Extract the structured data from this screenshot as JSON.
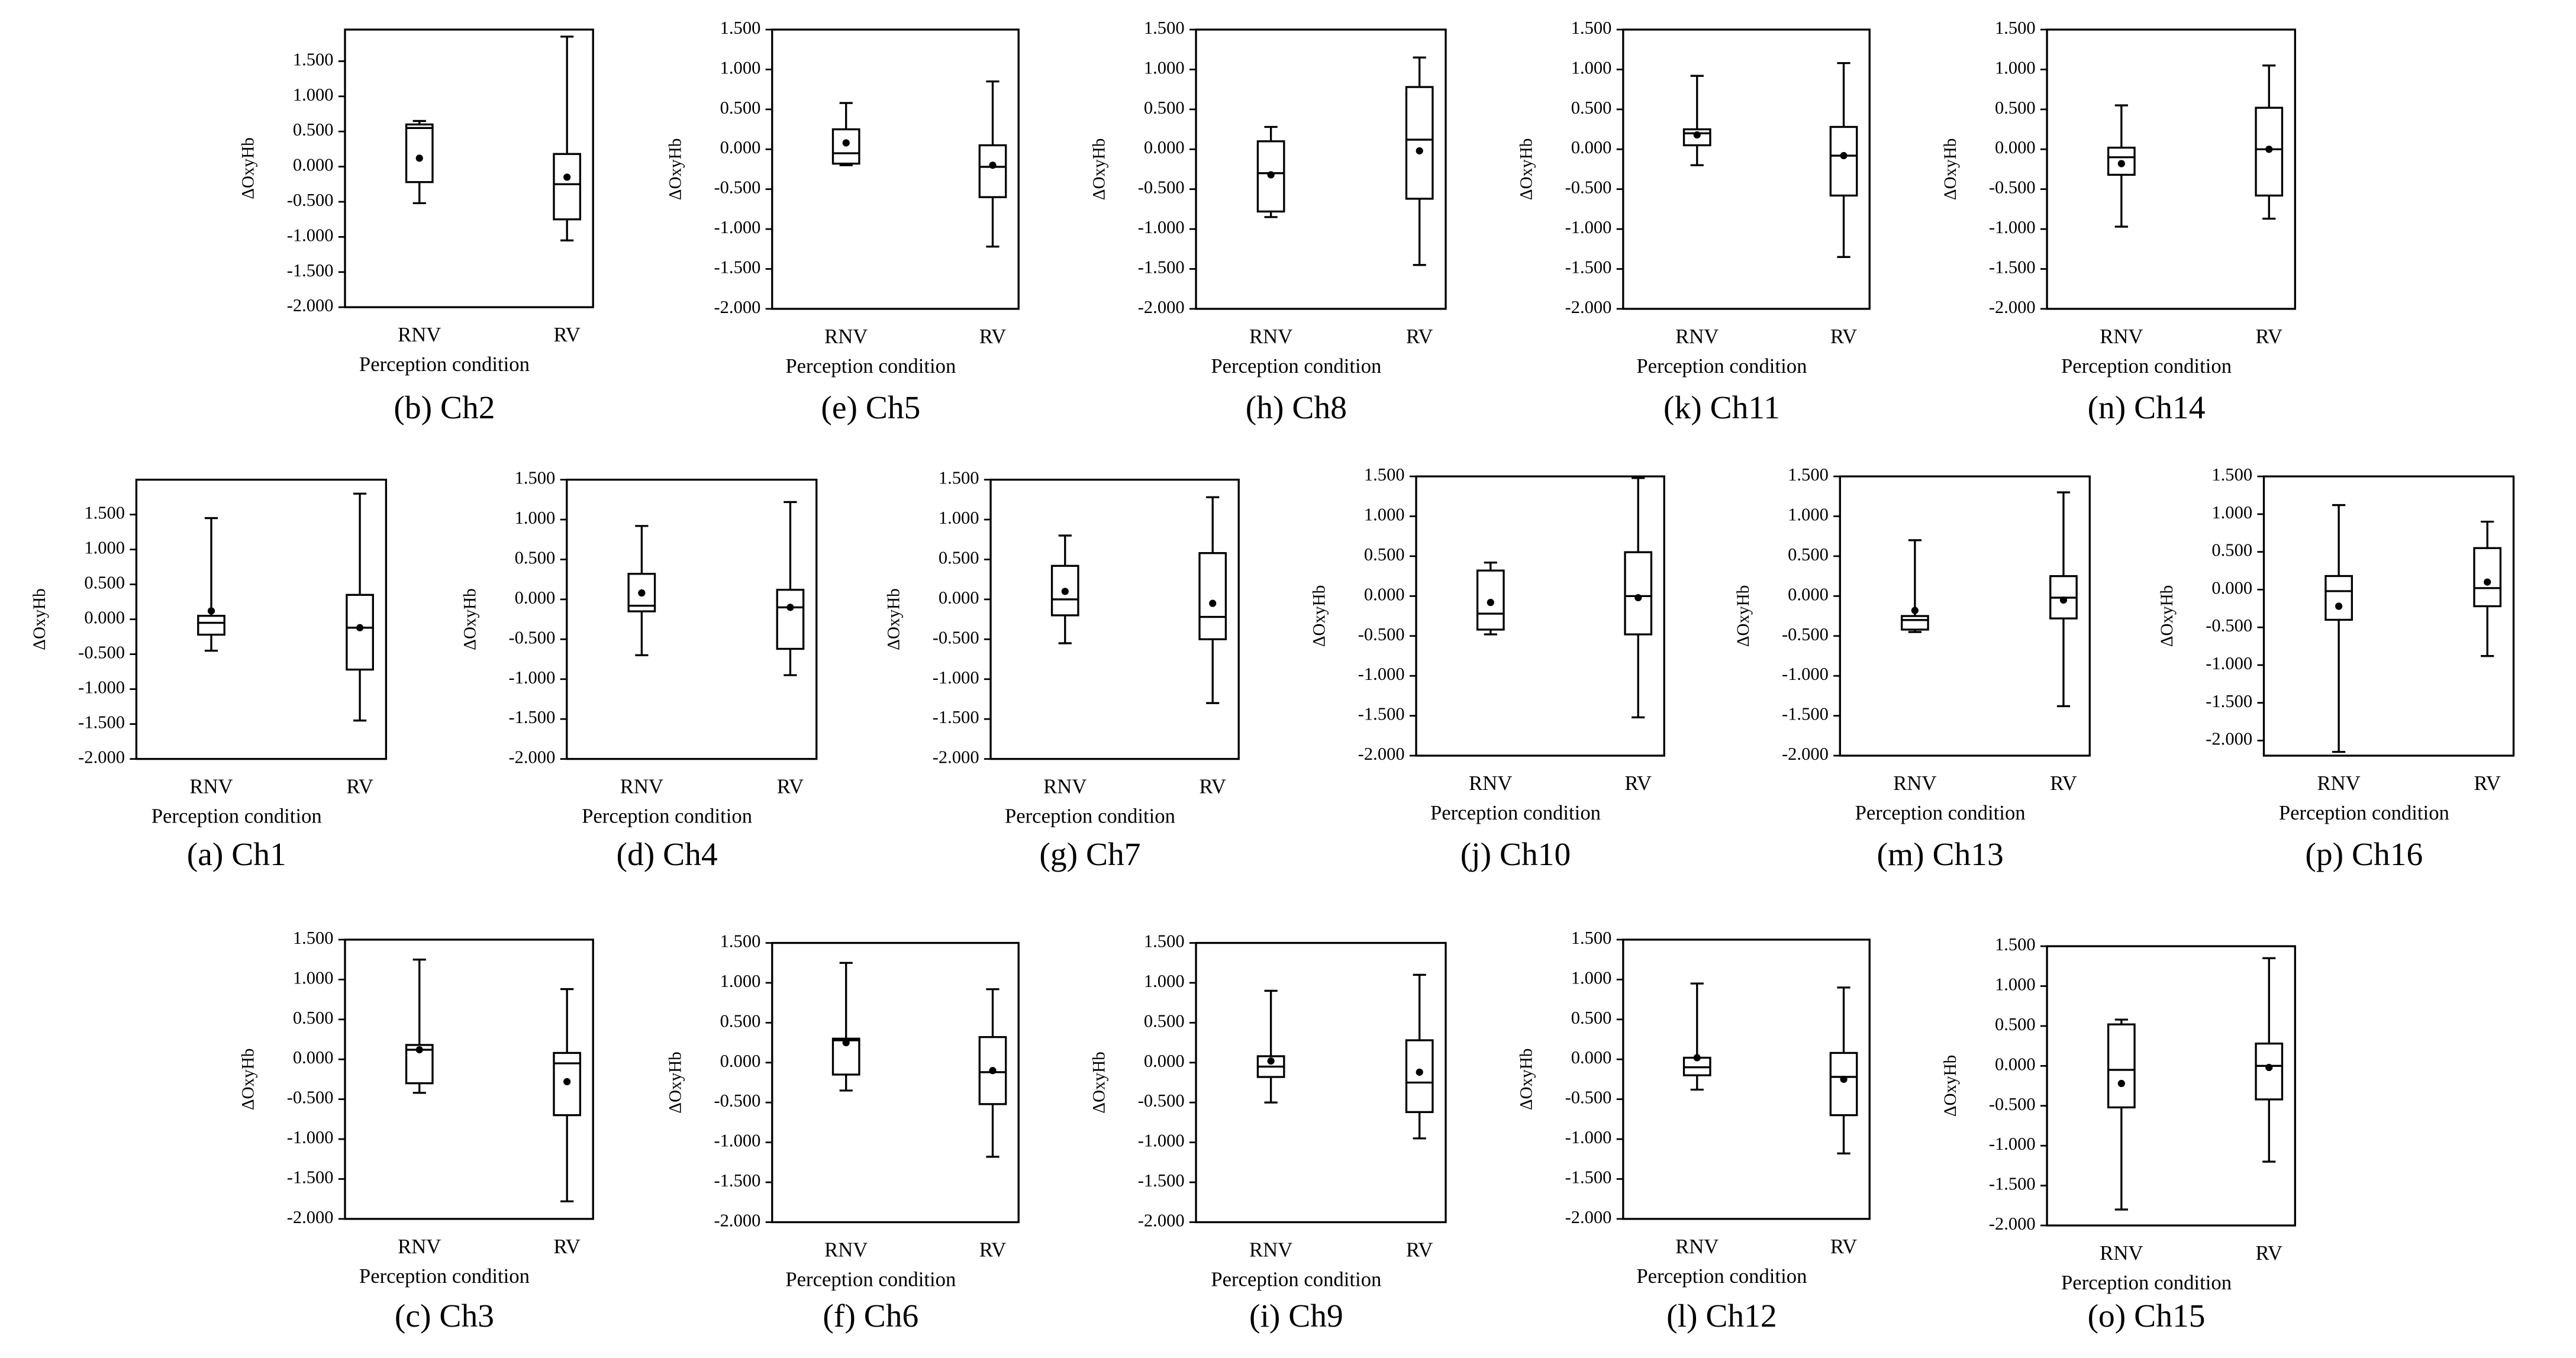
{
  "chart_data": [
    {
      "type": "box",
      "title": "(b) Ch2",
      "ylabel": "ΔOxyHb",
      "xlabel": "Perception condition",
      "categories": [
        "RNV",
        "RV"
      ],
      "ylim": [
        -2,
        1.95
      ],
      "yticks": [
        {
          "value": 1.5,
          "label": "1.500"
        },
        {
          "value": 1,
          "label": "1.000"
        },
        {
          "value": 0.5,
          "label": "0.500"
        },
        {
          "value": 0,
          "label": "0.000"
        },
        {
          "value": -0.5,
          "label": "-0.500"
        },
        {
          "value": -1,
          "label": "-1.000"
        },
        {
          "value": -1.5,
          "label": "-1.500"
        },
        {
          "value": -2,
          "label": "-2.000"
        }
      ],
      "min": [
        -0.52,
        -1.05
      ],
      "q1": [
        -0.22,
        -0.75
      ],
      "median": [
        0.55,
        -0.25
      ],
      "q3": [
        0.6,
        0.18
      ],
      "max": [
        0.65,
        1.85
      ],
      "mean": [
        0.12,
        -0.15
      ]
    },
    {
      "type": "box",
      "title": "(e) Ch5",
      "ylabel": "ΔOxyHb",
      "xlabel": "Perception condition",
      "categories": [
        "RNV",
        "RV"
      ],
      "ylim": [
        -2,
        1.5
      ],
      "yticks": [
        {
          "value": 1.5,
          "label": "1.500"
        },
        {
          "value": 1,
          "label": "1.000"
        },
        {
          "value": 0.5,
          "label": "0.500"
        },
        {
          "value": 0,
          "label": "0.000"
        },
        {
          "value": -0.5,
          "label": "-0.500"
        },
        {
          "value": -1,
          "label": "-1.000"
        },
        {
          "value": -1.5,
          "label": "-1.500"
        },
        {
          "value": -2,
          "label": "-2.000"
        }
      ],
      "min": [
        -0.2,
        -1.22
      ],
      "q1": [
        -0.18,
        -0.6
      ],
      "median": [
        -0.05,
        -0.22
      ],
      "q3": [
        0.25,
        0.05
      ],
      "max": [
        0.58,
        0.85
      ],
      "mean": [
        0.08,
        -0.2
      ]
    },
    {
      "type": "box",
      "title": "(h) Ch8",
      "ylabel": "ΔOxyHb",
      "xlabel": "Perception condition",
      "categories": [
        "RNV",
        "RV"
      ],
      "ylim": [
        -2,
        1.5
      ],
      "yticks": [
        {
          "value": 1.5,
          "label": "1.500"
        },
        {
          "value": 1,
          "label": "1.000"
        },
        {
          "value": 0.5,
          "label": "0.500"
        },
        {
          "value": 0,
          "label": "0.000"
        },
        {
          "value": -0.5,
          "label": "-0.500"
        },
        {
          "value": -1,
          "label": "-1.000"
        },
        {
          "value": -1.5,
          "label": "-1.500"
        },
        {
          "value": -2,
          "label": "-2.000"
        }
      ],
      "min": [
        -0.85,
        -1.45
      ],
      "q1": [
        -0.78,
        -0.62
      ],
      "median": [
        -0.3,
        0.12
      ],
      "q3": [
        0.1,
        0.78
      ],
      "max": [
        0.28,
        1.15
      ],
      "mean": [
        -0.32,
        -0.02
      ]
    },
    {
      "type": "box",
      "title": "(k) Ch11",
      "ylabel": "ΔOxyHb",
      "xlabel": "Perception condition",
      "categories": [
        "RNV",
        "RV"
      ],
      "ylim": [
        -2,
        1.5
      ],
      "yticks": [
        {
          "value": 1.5,
          "label": "1.500"
        },
        {
          "value": 1,
          "label": "1.000"
        },
        {
          "value": 0.5,
          "label": "0.500"
        },
        {
          "value": 0,
          "label": "0.000"
        },
        {
          "value": -0.5,
          "label": "-0.500"
        },
        {
          "value": -1,
          "label": "-1.000"
        },
        {
          "value": -1.5,
          "label": "-1.500"
        },
        {
          "value": -2,
          "label": "-2.000"
        }
      ],
      "min": [
        -0.2,
        -1.35
      ],
      "q1": [
        0.05,
        -0.58
      ],
      "median": [
        0.2,
        -0.08
      ],
      "q3": [
        0.25,
        0.28
      ],
      "max": [
        0.92,
        1.08
      ],
      "mean": [
        0.18,
        -0.08
      ]
    },
    {
      "type": "box",
      "title": "(n) Ch14",
      "ylabel": "ΔOxyHb",
      "xlabel": "Perception condition",
      "categories": [
        "RNV",
        "RV"
      ],
      "ylim": [
        -2,
        1.5
      ],
      "yticks": [
        {
          "value": 1.5,
          "label": "1.500"
        },
        {
          "value": 1,
          "label": "1.000"
        },
        {
          "value": 0.5,
          "label": "0.500"
        },
        {
          "value": 0,
          "label": "0.000"
        },
        {
          "value": -0.5,
          "label": "-0.500"
        },
        {
          "value": -1,
          "label": "-1.000"
        },
        {
          "value": -1.5,
          "label": "-1.500"
        },
        {
          "value": -2,
          "label": "-2.000"
        }
      ],
      "min": [
        -0.97,
        -0.87
      ],
      "q1": [
        -0.32,
        -0.58
      ],
      "median": [
        -0.1,
        0.0
      ],
      "q3": [
        0.02,
        0.52
      ],
      "max": [
        0.55,
        1.05
      ],
      "mean": [
        -0.18,
        0.0
      ]
    },
    {
      "type": "box",
      "title": "(a) Ch1",
      "ylabel": "ΔOxyHb",
      "xlabel": "Perception condition",
      "categories": [
        "RNV",
        "RV"
      ],
      "ylim": [
        -2,
        2.0
      ],
      "yticks": [
        {
          "value": 1.5,
          "label": "1.500"
        },
        {
          "value": 1,
          "label": "1.000"
        },
        {
          "value": 0.5,
          "label": "0.500"
        },
        {
          "value": 0,
          "label": "0.000"
        },
        {
          "value": -0.5,
          "label": "-0.500"
        },
        {
          "value": -1,
          "label": "-1.000"
        },
        {
          "value": -1.5,
          "label": "-1.500"
        },
        {
          "value": -2,
          "label": "-2.000"
        }
      ],
      "min": [
        -0.45,
        -1.45
      ],
      "q1": [
        -0.22,
        -0.72
      ],
      "median": [
        -0.05,
        -0.12
      ],
      "q3": [
        0.05,
        0.35
      ],
      "max": [
        1.45,
        1.8
      ],
      "mean": [
        0.12,
        -0.12
      ]
    },
    {
      "type": "box",
      "title": "(d) Ch4",
      "ylabel": "ΔOxyHb",
      "xlabel": "Perception condition",
      "categories": [
        "RNV",
        "RV"
      ],
      "ylim": [
        -2,
        1.5
      ],
      "yticks": [
        {
          "value": 1.5,
          "label": "1.500"
        },
        {
          "value": 1,
          "label": "1.000"
        },
        {
          "value": 0.5,
          "label": "0.500"
        },
        {
          "value": 0,
          "label": "0.000"
        },
        {
          "value": -0.5,
          "label": "-0.500"
        },
        {
          "value": -1,
          "label": "-1.000"
        },
        {
          "value": -1.5,
          "label": "-1.500"
        },
        {
          "value": -2,
          "label": "-2.000"
        }
      ],
      "min": [
        -0.7,
        -0.95
      ],
      "q1": [
        -0.15,
        -0.62
      ],
      "median": [
        -0.08,
        -0.1
      ],
      "q3": [
        0.32,
        0.12
      ],
      "max": [
        0.92,
        1.22
      ],
      "mean": [
        0.08,
        -0.1
      ]
    },
    {
      "type": "box",
      "title": "(g) Ch7",
      "ylabel": "ΔOxyHb",
      "xlabel": "Perception condition",
      "categories": [
        "RNV",
        "RV"
      ],
      "ylim": [
        -2,
        1.5
      ],
      "yticks": [
        {
          "value": 1.5,
          "label": "1.500"
        },
        {
          "value": 1,
          "label": "1.000"
        },
        {
          "value": 0.5,
          "label": "0.500"
        },
        {
          "value": 0,
          "label": "0.000"
        },
        {
          "value": -0.5,
          "label": "-0.500"
        },
        {
          "value": -1,
          "label": "-1.000"
        },
        {
          "value": -1.5,
          "label": "-1.500"
        },
        {
          "value": -2,
          "label": "-2.000"
        }
      ],
      "min": [
        -0.55,
        -1.3
      ],
      "q1": [
        -0.2,
        -0.5
      ],
      "median": [
        0.0,
        -0.22
      ],
      "q3": [
        0.42,
        0.58
      ],
      "max": [
        0.8,
        1.28
      ],
      "mean": [
        0.1,
        -0.05
      ]
    },
    {
      "type": "box",
      "title": "(j) Ch10",
      "ylabel": "ΔOxyHb",
      "xlabel": "Perception condition",
      "categories": [
        "RNV",
        "RV"
      ],
      "ylim": [
        -2,
        1.5
      ],
      "yticks": [
        {
          "value": 1.5,
          "label": "1.500"
        },
        {
          "value": 1,
          "label": "1.000"
        },
        {
          "value": 0.5,
          "label": "0.500"
        },
        {
          "value": 0,
          "label": "0.000"
        },
        {
          "value": -0.5,
          "label": "-0.500"
        },
        {
          "value": -1,
          "label": "-1.000"
        },
        {
          "value": -1.5,
          "label": "-1.500"
        },
        {
          "value": -2,
          "label": "-2.000"
        }
      ],
      "min": [
        -0.48,
        -1.52
      ],
      "q1": [
        -0.42,
        -0.48
      ],
      "median": [
        -0.22,
        0.0
      ],
      "q3": [
        0.32,
        0.55
      ],
      "max": [
        0.42,
        1.48
      ],
      "mean": [
        -0.08,
        -0.02
      ]
    },
    {
      "type": "box",
      "title": "(m) Ch13",
      "ylabel": "ΔOxyHb",
      "xlabel": "Perception condition",
      "categories": [
        "RNV",
        "RV"
      ],
      "ylim": [
        -2,
        1.5
      ],
      "yticks": [
        {
          "value": 1.5,
          "label": "1.500"
        },
        {
          "value": 1,
          "label": "1.000"
        },
        {
          "value": 0.5,
          "label": "0.500"
        },
        {
          "value": 0,
          "label": "0.000"
        },
        {
          "value": -0.5,
          "label": "-0.500"
        },
        {
          "value": -1,
          "label": "-1.000"
        },
        {
          "value": -1.5,
          "label": "-1.500"
        },
        {
          "value": -2,
          "label": "-2.000"
        }
      ],
      "min": [
        -0.45,
        -1.38
      ],
      "q1": [
        -0.42,
        -0.28
      ],
      "median": [
        -0.3,
        -0.02
      ],
      "q3": [
        -0.25,
        0.25
      ],
      "max": [
        0.7,
        1.3
      ],
      "mean": [
        -0.18,
        -0.05
      ]
    },
    {
      "type": "box",
      "title": "(p) Ch16",
      "ylabel": "ΔOxyHb",
      "xlabel": "Perception condition",
      "categories": [
        "RNV",
        "RV"
      ],
      "ylim": [
        -2.2,
        1.5
      ],
      "yticks": [
        {
          "value": 1.5,
          "label": "1.500"
        },
        {
          "value": 1,
          "label": "1.000"
        },
        {
          "value": 0.5,
          "label": "0.500"
        },
        {
          "value": 0,
          "label": "0.000"
        },
        {
          "value": -0.5,
          "label": "-0.500"
        },
        {
          "value": -1,
          "label": "-1.000"
        },
        {
          "value": -1.5,
          "label": "-1.500"
        },
        {
          "value": -2,
          "label": "-2.000"
        }
      ],
      "min": [
        -2.15,
        -0.88
      ],
      "q1": [
        -0.4,
        -0.22
      ],
      "median": [
        -0.02,
        0.02
      ],
      "q3": [
        0.18,
        0.55
      ],
      "max": [
        1.12,
        0.9
      ],
      "mean": [
        -0.22,
        0.1
      ]
    },
    {
      "type": "box",
      "title": "(c) Ch3",
      "ylabel": "ΔOxyHb",
      "xlabel": "Perception condition",
      "categories": [
        "RNV",
        "RV"
      ],
      "ylim": [
        -2,
        1.5
      ],
      "yticks": [
        {
          "value": 1.5,
          "label": "1.500"
        },
        {
          "value": 1,
          "label": "1.000"
        },
        {
          "value": 0.5,
          "label": "0.500"
        },
        {
          "value": 0,
          "label": "0.000"
        },
        {
          "value": -0.5,
          "label": "-0.500"
        },
        {
          "value": -1,
          "label": "-1.000"
        },
        {
          "value": -1.5,
          "label": "-1.500"
        },
        {
          "value": -2,
          "label": "-2.000"
        }
      ],
      "min": [
        -0.42,
        -1.78
      ],
      "q1": [
        -0.3,
        -0.7
      ],
      "median": [
        0.12,
        -0.05
      ],
      "q3": [
        0.18,
        0.08
      ],
      "max": [
        1.25,
        0.88
      ],
      "mean": [
        0.12,
        -0.28
      ]
    },
    {
      "type": "box",
      "title": "(f) Ch6",
      "ylabel": "ΔOxyHb",
      "xlabel": "Perception condition",
      "categories": [
        "RNV",
        "RV"
      ],
      "ylim": [
        -2,
        1.5
      ],
      "yticks": [
        {
          "value": 1.5,
          "label": "1.500"
        },
        {
          "value": 1,
          "label": "1.000"
        },
        {
          "value": 0.5,
          "label": "0.500"
        },
        {
          "value": 0,
          "label": "0.000"
        },
        {
          "value": -0.5,
          "label": "-0.500"
        },
        {
          "value": -1,
          "label": "-1.000"
        },
        {
          "value": -1.5,
          "label": "-1.500"
        },
        {
          "value": -2,
          "label": "-2.000"
        }
      ],
      "min": [
        -0.35,
        -1.18
      ],
      "q1": [
        -0.15,
        -0.52
      ],
      "median": [
        0.28,
        -0.12
      ],
      "q3": [
        0.3,
        0.32
      ],
      "max": [
        1.25,
        0.92
      ],
      "mean": [
        0.25,
        -0.1
      ]
    },
    {
      "type": "box",
      "title": "(i) Ch9",
      "ylabel": "ΔOxyHb",
      "xlabel": "Perception condition",
      "categories": [
        "RNV",
        "RV"
      ],
      "ylim": [
        -2,
        1.5
      ],
      "yticks": [
        {
          "value": 1.5,
          "label": "1.500"
        },
        {
          "value": 1,
          "label": "1.000"
        },
        {
          "value": 0.5,
          "label": "0.500"
        },
        {
          "value": 0,
          "label": "0.000"
        },
        {
          "value": -0.5,
          "label": "-0.500"
        },
        {
          "value": -1,
          "label": "-1.000"
        },
        {
          "value": -1.5,
          "label": "-1.500"
        },
        {
          "value": -2,
          "label": "-2.000"
        }
      ],
      "min": [
        -0.5,
        -0.95
      ],
      "q1": [
        -0.18,
        -0.62
      ],
      "median": [
        -0.05,
        -0.25
      ],
      "q3": [
        0.08,
        0.28
      ],
      "max": [
        0.9,
        1.1
      ],
      "mean": [
        0.02,
        -0.12
      ]
    },
    {
      "type": "box",
      "title": "(l) Ch12",
      "ylabel": "ΔOxyHb",
      "xlabel": "Perception condition",
      "categories": [
        "RNV",
        "RV"
      ],
      "ylim": [
        -2,
        1.5
      ],
      "yticks": [
        {
          "value": 1.5,
          "label": "1.500"
        },
        {
          "value": 1,
          "label": "1.000"
        },
        {
          "value": 0.5,
          "label": "0.500"
        },
        {
          "value": 0,
          "label": "0.000"
        },
        {
          "value": -0.5,
          "label": "-0.500"
        },
        {
          "value": -1,
          "label": "-1.000"
        },
        {
          "value": -1.5,
          "label": "-1.500"
        },
        {
          "value": -2,
          "label": "-2.000"
        }
      ],
      "min": [
        -0.38,
        -1.18
      ],
      "q1": [
        -0.2,
        -0.7
      ],
      "median": [
        -0.1,
        -0.22
      ],
      "q3": [
        0.02,
        0.08
      ],
      "max": [
        0.95,
        0.9
      ],
      "mean": [
        0.02,
        -0.25
      ]
    },
    {
      "type": "box",
      "title": "(o) Ch15",
      "ylabel": "ΔOxyHb",
      "xlabel": "Perception condition",
      "categories": [
        "RNV",
        "RV"
      ],
      "ylim": [
        -2,
        1.5
      ],
      "yticks": [
        {
          "value": 1.5,
          "label": "1.500"
        },
        {
          "value": 1,
          "label": "1.000"
        },
        {
          "value": 0.5,
          "label": "0.500"
        },
        {
          "value": 0,
          "label": "0.000"
        },
        {
          "value": -0.5,
          "label": "-0.500"
        },
        {
          "value": -1,
          "label": "-1.000"
        },
        {
          "value": -1.5,
          "label": "-1.500"
        },
        {
          "value": -2,
          "label": "-2.000"
        }
      ],
      "min": [
        -1.8,
        -1.2
      ],
      "q1": [
        -0.52,
        -0.42
      ],
      "median": [
        -0.05,
        0.0
      ],
      "q3": [
        0.52,
        0.28
      ],
      "max": [
        0.58,
        1.35
      ],
      "mean": [
        -0.22,
        -0.02
      ]
    }
  ]
}
